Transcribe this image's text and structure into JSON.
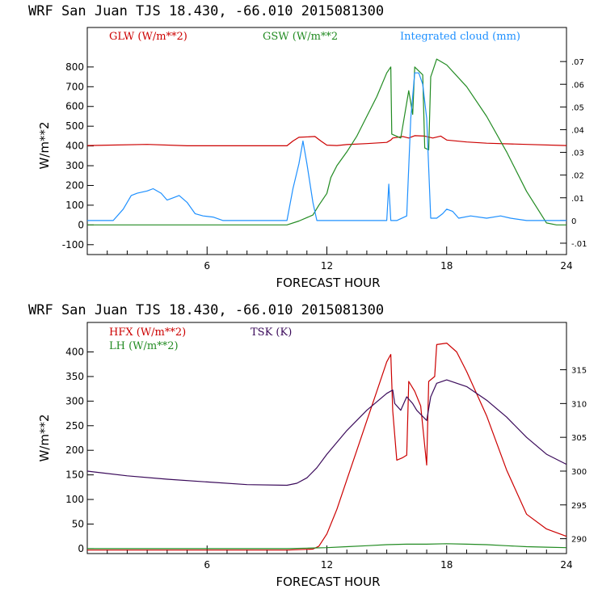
{
  "colors": {
    "red": "#cc0000",
    "green": "#228b22",
    "blue": "#1e90ff",
    "purple": "#3a0a5a",
    "axis": "#000000"
  },
  "chart_data": [
    {
      "type": "line",
      "title": "WRF  San Juan TJS  18.430, -66.010  2015081300",
      "xlabel": "FORECAST HOUR",
      "ylabel": "W/m**2",
      "xlim": [
        0,
        24
      ],
      "ylim": [
        -150,
        1000
      ],
      "x_ticks": [
        6,
        12,
        18,
        24
      ],
      "y_ticks": [
        -100,
        0,
        100,
        200,
        300,
        400,
        500,
        600,
        700,
        800
      ],
      "y2lim": [
        -0.015,
        0.085
      ],
      "y2_ticks": [
        -0.01,
        0,
        0.01,
        0.02,
        0.03,
        0.04,
        0.05,
        0.06,
        0.07
      ],
      "y2_tick_labels": [
        "-.01",
        "0",
        ".01",
        ".02",
        ".03",
        ".04",
        ".05",
        ".06",
        ".07"
      ],
      "series": [
        {
          "name": "GLW (W/m**2)",
          "color_key": "red",
          "axis": "left",
          "points": [
            [
              0,
              402
            ],
            [
              3,
              408
            ],
            [
              5,
              401
            ],
            [
              10,
              401
            ],
            [
              10.3,
              425
            ],
            [
              10.6,
              444
            ],
            [
              11.4,
              448
            ],
            [
              11.7,
              425
            ],
            [
              12,
              404
            ],
            [
              12.5,
              402
            ],
            [
              13,
              407
            ],
            [
              14,
              412
            ],
            [
              15,
              418
            ],
            [
              15.2,
              430
            ],
            [
              15.3,
              440
            ],
            [
              15.8,
              448
            ],
            [
              16.1,
              440
            ],
            [
              16.4,
              452
            ],
            [
              16.9,
              450
            ],
            [
              17.3,
              440
            ],
            [
              17.7,
              450
            ],
            [
              18,
              430
            ],
            [
              19,
              420
            ],
            [
              20,
              414
            ],
            [
              22,
              408
            ],
            [
              24,
              402
            ]
          ]
        },
        {
          "name": "GSW (W/m**2",
          "color_key": "green",
          "axis": "left",
          "points": [
            [
              0,
              0
            ],
            [
              10,
              0
            ],
            [
              10.6,
              20
            ],
            [
              11.3,
              50
            ],
            [
              11.6,
              100
            ],
            [
              12,
              160
            ],
            [
              12.2,
              240
            ],
            [
              12.5,
              300
            ],
            [
              13,
              370
            ],
            [
              13.5,
              450
            ],
            [
              14,
              550
            ],
            [
              14.5,
              650
            ],
            [
              15,
              770
            ],
            [
              15.2,
              800
            ],
            [
              15.25,
              460
            ],
            [
              15.7,
              440
            ],
            [
              15.8,
              500
            ],
            [
              16.1,
              680
            ],
            [
              16.3,
              560
            ],
            [
              16.4,
              800
            ],
            [
              16.8,
              760
            ],
            [
              16.9,
              390
            ],
            [
              17.1,
              380
            ],
            [
              17.2,
              750
            ],
            [
              17.3,
              780
            ],
            [
              17.5,
              840
            ],
            [
              18,
              810
            ],
            [
              19,
              700
            ],
            [
              20,
              550
            ],
            [
              21,
              370
            ],
            [
              22,
              170
            ],
            [
              23,
              10
            ],
            [
              23.5,
              0
            ],
            [
              24,
              0
            ]
          ]
        },
        {
          "name": "Integrated cloud (mm)",
          "color_key": "blue",
          "axis": "right",
          "points": [
            [
              0,
              0
            ],
            [
              1.3,
              0
            ],
            [
              1.8,
              0.005
            ],
            [
              2.2,
              0.011
            ],
            [
              2.5,
              0.012
            ],
            [
              3,
              0.013
            ],
            [
              3.3,
              0.014
            ],
            [
              3.7,
              0.012
            ],
            [
              4,
              0.009
            ],
            [
              4.3,
              0.01
            ],
            [
              4.6,
              0.011
            ],
            [
              5,
              0.008
            ],
            [
              5.4,
              0.003
            ],
            [
              5.8,
              0.002
            ],
            [
              6.3,
              0.0015
            ],
            [
              6.8,
              0
            ],
            [
              8.2,
              0
            ],
            [
              9.5,
              0
            ],
            [
              10,
              0
            ],
            [
              10.3,
              0.014
            ],
            [
              10.6,
              0.025
            ],
            [
              10.8,
              0.035
            ],
            [
              11,
              0.025
            ],
            [
              11.3,
              0.008
            ],
            [
              11.5,
              0
            ],
            [
              15,
              0
            ],
            [
              15.1,
              0.016
            ],
            [
              15.2,
              0
            ],
            [
              15.5,
              0
            ],
            [
              16,
              0.002
            ],
            [
              16.2,
              0.045
            ],
            [
              16.4,
              0.065
            ],
            [
              16.6,
              0.065
            ],
            [
              16.8,
              0.06
            ],
            [
              17,
              0.045
            ],
            [
              17.2,
              0.001
            ],
            [
              17.5,
              0.001
            ],
            [
              17.8,
              0.003
            ],
            [
              18,
              0.005
            ],
            [
              18.3,
              0.004
            ],
            [
              18.6,
              0.001
            ],
            [
              19.2,
              0.002
            ],
            [
              20,
              0.001
            ],
            [
              20.7,
              0.002
            ],
            [
              21.2,
              0.001
            ],
            [
              22,
              0
            ],
            [
              24,
              0
            ]
          ]
        }
      ]
    },
    {
      "type": "line",
      "title": "WRF  San Juan TJS  18.430, -66.010  2015081300",
      "xlabel": "FORECAST HOUR",
      "ylabel": "W/m**2",
      "xlim": [
        0,
        24
      ],
      "ylim": [
        -10,
        460
      ],
      "x_ticks": [
        6,
        12,
        18,
        24
      ],
      "y_ticks": [
        0,
        50,
        100,
        150,
        200,
        250,
        300,
        350,
        400
      ],
      "y2lim": [
        287.8,
        322.0
      ],
      "y2_ticks": [
        290,
        295,
        300,
        305,
        310,
        315
      ],
      "y2_tick_labels": [
        "290",
        "295",
        "300",
        "305",
        "310",
        "315"
      ],
      "series": [
        {
          "name": "HFX (W/m**2)",
          "color_key": "red",
          "axis": "left",
          "points": [
            [
              0,
              -3
            ],
            [
              10,
              -3
            ],
            [
              11.3,
              -1
            ],
            [
              11.6,
              5
            ],
            [
              12,
              30
            ],
            [
              12.5,
              80
            ],
            [
              13,
              140
            ],
            [
              13.5,
              200
            ],
            [
              14,
              260
            ],
            [
              14.5,
              320
            ],
            [
              15,
              380
            ],
            [
              15.2,
              395
            ],
            [
              15.3,
              280
            ],
            [
              15.5,
              180
            ],
            [
              15.8,
              185
            ],
            [
              16,
              190
            ],
            [
              16.1,
              340
            ],
            [
              16.4,
              320
            ],
            [
              16.7,
              290
            ],
            [
              17,
              170
            ],
            [
              17.1,
              340
            ],
            [
              17.4,
              350
            ],
            [
              17.5,
              415
            ],
            [
              18,
              418
            ],
            [
              18.5,
              400
            ],
            [
              19,
              360
            ],
            [
              20,
              270
            ],
            [
              21,
              160
            ],
            [
              22,
              70
            ],
            [
              23,
              40
            ],
            [
              24,
              25
            ]
          ]
        },
        {
          "name": "LH  (W/m**2)",
          "color_key": "green",
          "axis": "left",
          "points": [
            [
              0,
              0
            ],
            [
              10,
              0
            ],
            [
              11,
              1
            ],
            [
              12,
              2
            ],
            [
              13,
              4
            ],
            [
              14,
              6
            ],
            [
              15,
              8
            ],
            [
              16,
              9
            ],
            [
              17,
              9
            ],
            [
              18,
              10
            ],
            [
              19,
              9
            ],
            [
              20,
              8
            ],
            [
              21,
              6
            ],
            [
              22,
              4
            ],
            [
              23,
              3
            ],
            [
              24,
              2
            ]
          ]
        },
        {
          "name": "TSK (K)",
          "color_key": "purple",
          "axis": "right",
          "points": [
            [
              0,
              300.0
            ],
            [
              2,
              299.3
            ],
            [
              4,
              298.8
            ],
            [
              6,
              298.4
            ],
            [
              8,
              298.0
            ],
            [
              10,
              297.9
            ],
            [
              10.5,
              298.2
            ],
            [
              11,
              299.0
            ],
            [
              11.5,
              300.5
            ],
            [
              12,
              302.5
            ],
            [
              13,
              306.0
            ],
            [
              14,
              309.0
            ],
            [
              15,
              311.5
            ],
            [
              15.3,
              312.0
            ],
            [
              15.4,
              310.0
            ],
            [
              15.7,
              309.0
            ],
            [
              16,
              311.0
            ],
            [
              16.3,
              310.0
            ],
            [
              16.5,
              309.0
            ],
            [
              17,
              307.5
            ],
            [
              17.2,
              311.0
            ],
            [
              17.5,
              313.0
            ],
            [
              18,
              313.5
            ],
            [
              19,
              312.5
            ],
            [
              20,
              310.5
            ],
            [
              21,
              308.0
            ],
            [
              22,
              305.0
            ],
            [
              23,
              302.5
            ],
            [
              24,
              301.0
            ]
          ]
        }
      ]
    }
  ]
}
